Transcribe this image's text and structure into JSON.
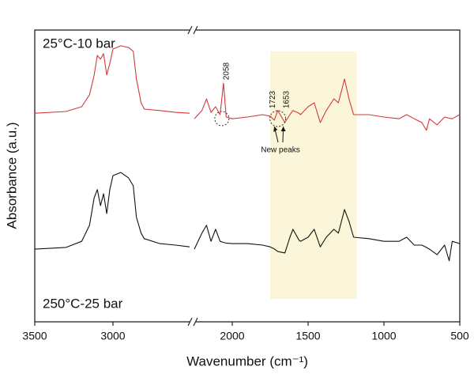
{
  "chart_data": {
    "type": "line",
    "xlabel": "Wavenumber (cm⁻¹)",
    "ylabel": "Absorbance (a.u.)",
    "x": [
      3500,
      3300,
      3200,
      3150,
      3120,
      3100,
      3080,
      3060,
      3040,
      3020,
      3000,
      2950,
      2900,
      2870,
      2850,
      2820,
      2800,
      2700,
      2600,
      2510,
      2250,
      2200,
      2170,
      2140,
      2110,
      2080,
      2058,
      2040,
      2000,
      1900,
      1800,
      1750,
      1723,
      1700,
      1653,
      1620,
      1600,
      1560,
      1550,
      1500,
      1460,
      1420,
      1380,
      1330,
      1300,
      1260,
      1230,
      1200,
      1100,
      1000,
      900,
      850,
      800,
      750,
      720,
      700,
      650,
      600,
      570,
      550,
      500
    ],
    "series": [
      {
        "name": "25°C-10 bar",
        "color": "#d03a3a",
        "values": [
          7.15,
          7.21,
          7.37,
          7.78,
          8.46,
          9.13,
          9.0,
          9.19,
          8.46,
          8.86,
          9.35,
          9.46,
          9.4,
          9.27,
          8.32,
          7.51,
          7.29,
          7.24,
          7.18,
          7.15,
          6.96,
          7.24,
          7.64,
          7.18,
          7.37,
          7.1,
          8.18,
          7.02,
          6.96,
          7.02,
          7.1,
          7.05,
          6.91,
          7.24,
          6.83,
          7.1,
          7.24,
          7.15,
          7.1,
          7.37,
          7.51,
          6.83,
          7.24,
          7.64,
          7.51,
          8.32,
          7.64,
          7.1,
          7.1,
          7.02,
          6.96,
          7.1,
          6.96,
          6.83,
          6.56,
          6.96,
          6.75,
          7.02,
          6.98,
          6.96,
          7.1
        ]
      },
      {
        "name": "250°C-25 bar",
        "color": "#111111",
        "values": [
          2.49,
          2.55,
          2.76,
          3.31,
          4.25,
          4.53,
          3.98,
          4.39,
          3.71,
          4.53,
          5.01,
          5.12,
          4.93,
          4.66,
          3.58,
          3.04,
          2.85,
          2.68,
          2.63,
          2.57,
          2.49,
          3.04,
          3.31,
          2.76,
          3.17,
          2.76,
          2.72,
          2.7,
          2.68,
          2.68,
          2.63,
          2.57,
          2.5,
          2.41,
          2.36,
          2.9,
          3.17,
          2.8,
          2.76,
          2.9,
          3.17,
          2.57,
          2.9,
          3.17,
          3.04,
          3.85,
          3.44,
          2.9,
          2.85,
          2.76,
          2.76,
          2.9,
          2.63,
          2.63,
          2.55,
          2.49,
          2.3,
          2.63,
          2.09,
          2.76,
          2.68
        ]
      }
    ],
    "xlim": [
      3500,
      500
    ],
    "xbreak": [
      2500,
      2250
    ],
    "xticks": [
      3500,
      3000,
      2000,
      1500,
      1000,
      500
    ],
    "ylim": [
      0,
      10
    ],
    "highlight": [
      1750,
      1180
    ],
    "highlight_color": "#fbf6d9",
    "annotations": [
      {
        "text": "2058"
      },
      {
        "text": "1723"
      },
      {
        "text": "1653"
      },
      {
        "text": "New peaks"
      }
    ]
  }
}
